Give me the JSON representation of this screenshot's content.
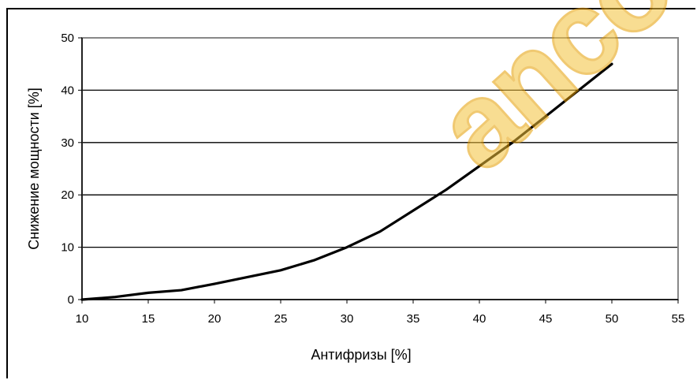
{
  "chart_data": {
    "type": "line",
    "xlabel": "Антифризы [%]",
    "ylabel": "Снижение мощности [%]",
    "xlim": [
      10,
      55
    ],
    "ylim": [
      0,
      50
    ],
    "xticks": [
      10,
      15,
      20,
      25,
      30,
      35,
      40,
      45,
      50,
      55
    ],
    "yticks": [
      0,
      10,
      20,
      30,
      40,
      50
    ],
    "grid": "horizontal",
    "line_color": "#000000",
    "series": [
      {
        "x": [
          10,
          12.5,
          15,
          17.5,
          20,
          22.5,
          25,
          27.5,
          30,
          32.5,
          35,
          37.5,
          40,
          42.5,
          45,
          47.5,
          50
        ],
        "values": [
          0,
          0.5,
          1.3,
          1.8,
          3,
          4.3,
          5.6,
          7.5,
          10,
          13,
          17,
          21,
          25.5,
          30,
          35,
          40,
          45
        ]
      }
    ]
  },
  "watermark": "ancoet"
}
